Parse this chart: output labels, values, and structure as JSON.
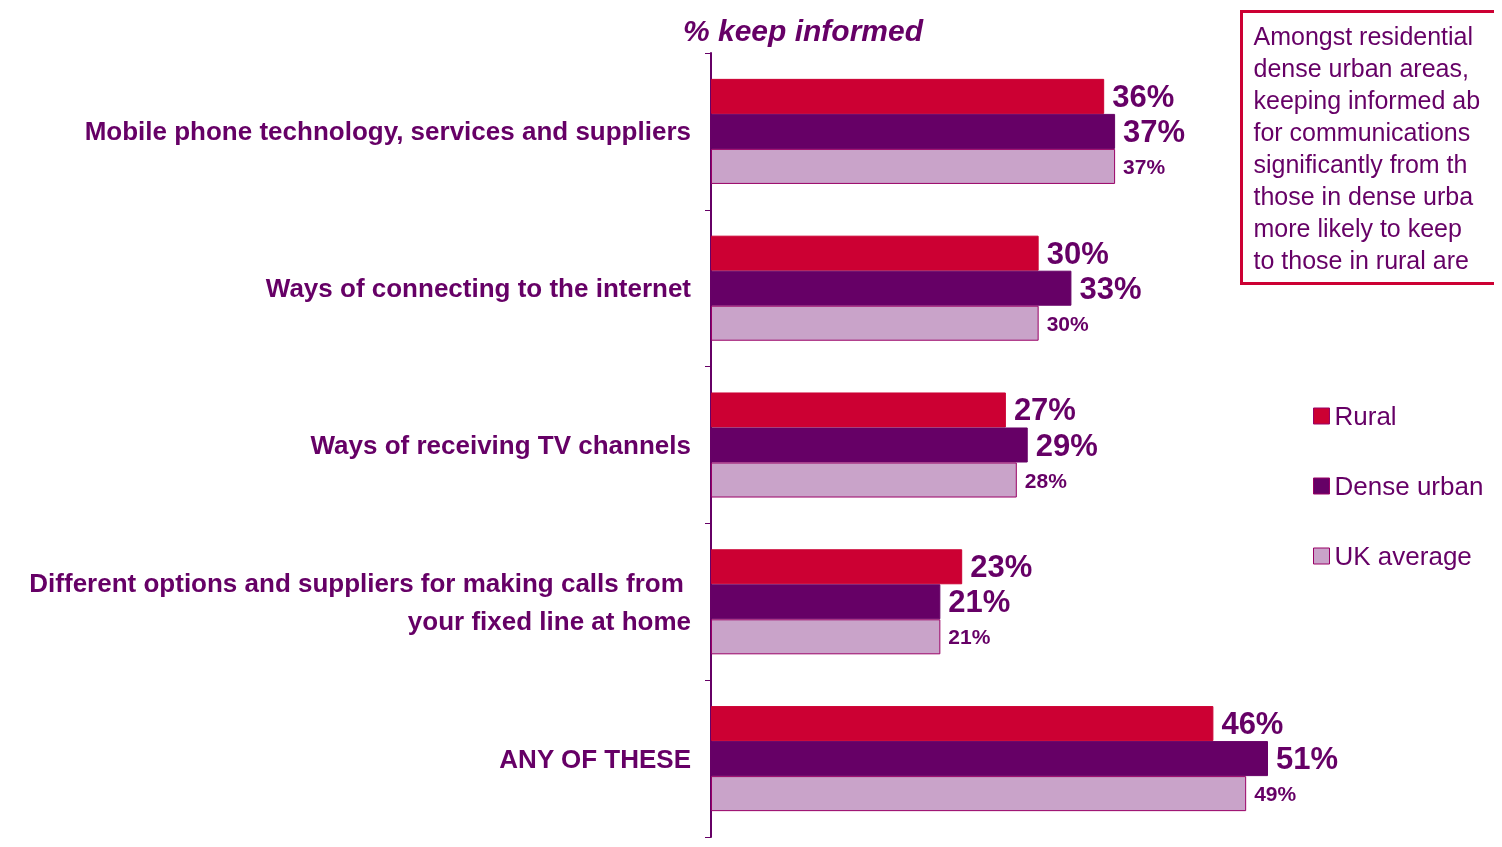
{
  "chart_data": {
    "type": "bar",
    "orientation": "horizontal",
    "title": "% keep informed",
    "categories": [
      "Mobile phone technology, services and suppliers",
      "Ways of connecting to the internet",
      "Ways of receiving TV channels",
      "Different options and suppliers for making calls from your fixed line at home",
      "ANY OF THESE"
    ],
    "series": [
      {
        "name": "Rural",
        "color": "#cc0033",
        "values": [
          36,
          30,
          27,
          23,
          46
        ],
        "value_labels": [
          "36%",
          "30%",
          "27%",
          "23%",
          "46%"
        ]
      },
      {
        "name": "Dense urban",
        "color": "#660066",
        "values": [
          37,
          33,
          29,
          21,
          51
        ],
        "value_labels": [
          "37%",
          "33%",
          "29%",
          "21%",
          "51%"
        ]
      },
      {
        "name": "UK average",
        "color": "#c9a3c9",
        "values": [
          37,
          30,
          28,
          21,
          49
        ],
        "value_labels": [
          "37%",
          "30%",
          "28%",
          "21%",
          "49%"
        ]
      }
    ],
    "legend": "right",
    "grid": false,
    "annotations": [
      "Amongst residential\ndense urban areas,\nkeeping informed ab\nfor communications\nsignificantly from th\nthose in dense urba\nmore likely to keep\nto those in rural are"
    ]
  }
}
